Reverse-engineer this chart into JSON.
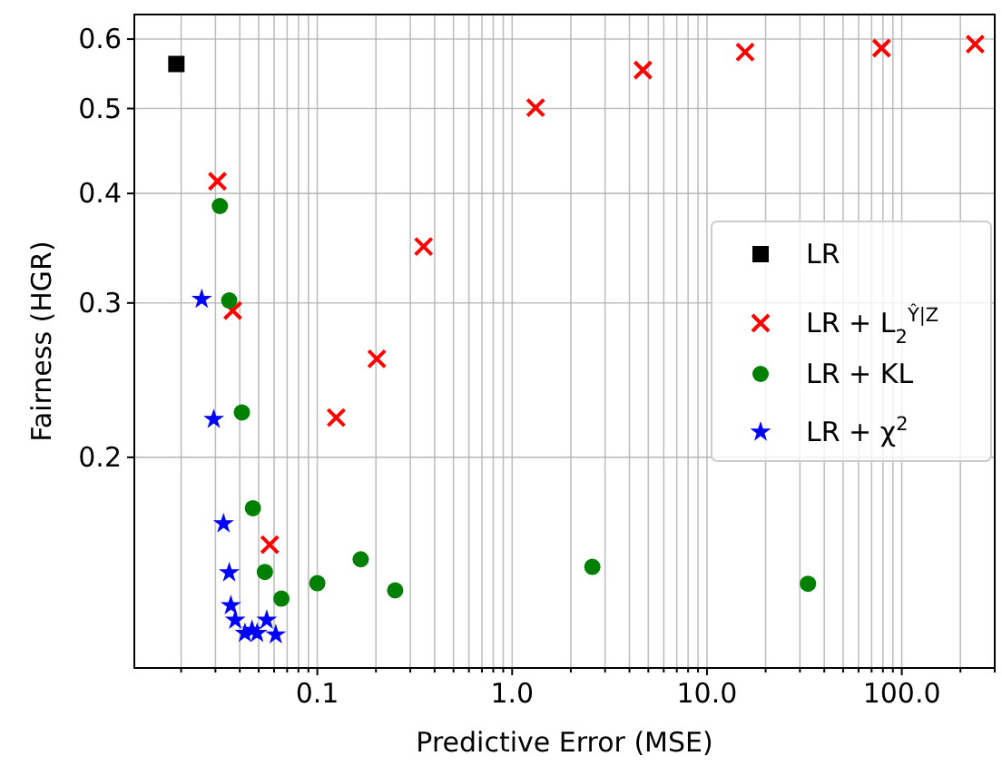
{
  "chart_data": {
    "type": "scatter",
    "xlabel": "Predictive Error (MSE)",
    "ylabel": "Fairness (HGR)",
    "log": "xy",
    "grid": true,
    "legend": "right",
    "xlim": [
      0.0115,
      300
    ],
    "ylim": [
      0.115,
      0.64
    ],
    "xticks": [
      {
        "value": 0.02,
        "label": null
      },
      {
        "value": 0.03,
        "label": null
      },
      {
        "value": 0.04,
        "label": null
      },
      {
        "value": 0.05,
        "label": null
      },
      {
        "value": 0.06,
        "label": null
      },
      {
        "value": 0.07,
        "label": null
      },
      {
        "value": 0.08,
        "label": null
      },
      {
        "value": 0.09,
        "label": null
      },
      0.1,
      {
        "value": 0.2,
        "label": null
      },
      {
        "value": 0.3,
        "label": null
      },
      {
        "value": 0.4,
        "label": null
      },
      {
        "value": 0.5,
        "label": null
      },
      {
        "value": 0.6,
        "label": null
      },
      {
        "value": 0.7,
        "label": null
      },
      {
        "value": 0.8,
        "label": null
      },
      {
        "value": 0.9,
        "label": null
      },
      {
        "value": 1,
        "label": "1.0"
      },
      {
        "value": 2,
        "label": null
      },
      {
        "value": 3,
        "label": null
      },
      {
        "value": 4,
        "label": null
      },
      {
        "value": 5,
        "label": null
      },
      {
        "value": 6,
        "label": null
      },
      {
        "value": 7,
        "label": null
      },
      {
        "value": 8,
        "label": null
      },
      {
        "value": 9,
        "label": null
      },
      {
        "value": 10,
        "label": "10.0"
      },
      {
        "value": 20,
        "label": null
      },
      {
        "value": 30,
        "label": null
      },
      {
        "value": 40,
        "label": null
      },
      {
        "value": 50,
        "label": null
      },
      {
        "value": 60,
        "label": null
      },
      {
        "value": 70,
        "label": null
      },
      {
        "value": 80,
        "label": null
      },
      {
        "value": 90,
        "label": null
      },
      {
        "value": 100,
        "label": "100.0"
      },
      {
        "value": 200,
        "label": null
      },
      {
        "value": 300,
        "label": null
      }
    ],
    "yticks": [
      0.2,
      0.3,
      0.4,
      0.5,
      0.6
    ],
    "series": [
      {
        "name": "LR",
        "color": "#000000",
        "marker": "square",
        "x": [
          0.0189
        ],
        "values": [
          0.562
        ]
      },
      {
        "name": "LR + L$_{2}$$^{Ŷ|Z}$",
        "color": "#ff0000",
        "marker": "cross",
        "x": [
          0.0307,
          0.0368,
          0.057,
          0.125,
          0.202,
          0.351,
          1.32,
          4.69,
          15.7,
          78.7,
          238
        ],
        "values": [
          0.413,
          0.294,
          0.159,
          0.222,
          0.259,
          0.348,
          0.501,
          0.553,
          0.58,
          0.586,
          0.592
        ]
      },
      {
        "name": "LR + KL",
        "color": "#008000",
        "marker": "circle",
        "x": [
          0.0316,
          0.0353,
          0.041,
          0.0467,
          0.0538,
          0.0654,
          0.1,
          0.167,
          0.251,
          2.58,
          33
        ],
        "values": [
          0.387,
          0.302,
          0.225,
          0.175,
          0.148,
          0.138,
          0.1437,
          0.153,
          0.141,
          0.15,
          0.1435
        ]
      },
      {
        "name": "LR + χ$^{2}$",
        "color": "#0000ff",
        "marker": "star",
        "x": [
          0.0255,
          0.0294,
          0.033,
          0.0353,
          0.036,
          0.0379,
          0.0425,
          0.0462,
          0.0491,
          0.055,
          0.0612
        ],
        "values": [
          0.303,
          0.221,
          0.168,
          0.1477,
          0.1355,
          0.1304,
          0.126,
          0.127,
          0.126,
          0.1304,
          0.1255
        ]
      }
    ]
  }
}
